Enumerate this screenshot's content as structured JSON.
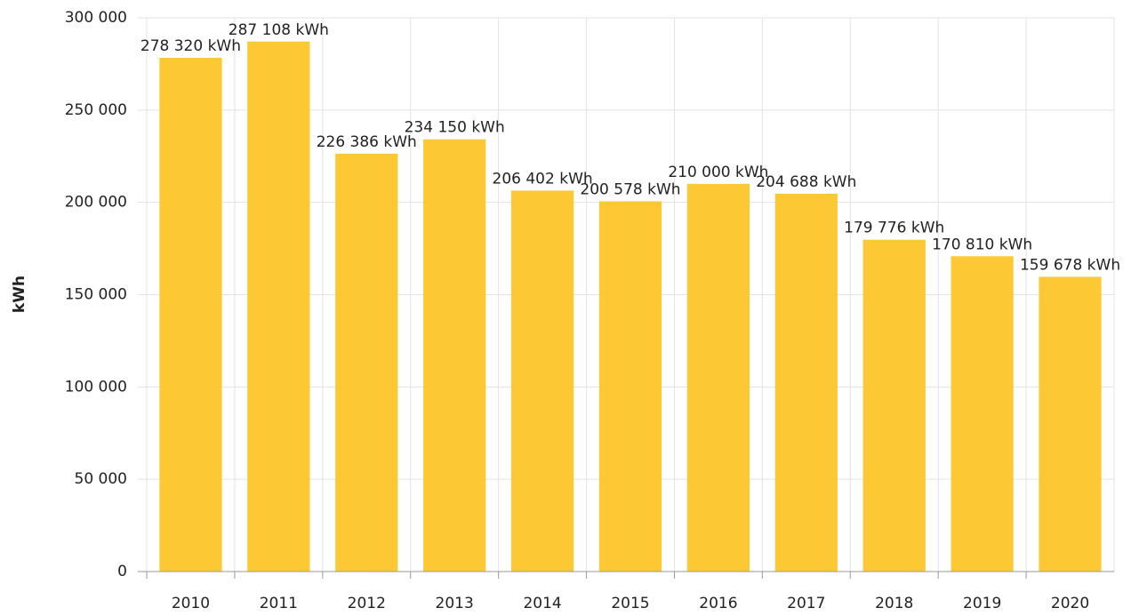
{
  "chart_data": {
    "type": "bar",
    "y_axis_label": "kWh",
    "categories": [
      "2010",
      "2011",
      "2012",
      "2013",
      "2014",
      "2015",
      "2016",
      "2017",
      "2018",
      "2019",
      "2020"
    ],
    "values": [
      278320,
      287108,
      226386,
      234150,
      206402,
      200578,
      210000,
      204688,
      179776,
      170810,
      159678
    ],
    "value_labels": [
      "278 320 kWh",
      "287 108 kWh",
      "226 386 kWh",
      "234 150 kWh",
      "206 402 kWh",
      "200 578 kWh",
      "210 000 kWh",
      "204 688 kWh",
      "179 776 kWh",
      "170 810 kWh",
      "159 678 kWh"
    ],
    "color": "#fcc934",
    "ylim": [
      0,
      300000
    ],
    "yticks": [
      0,
      {
        "value": 50000,
        "label": "50 000"
      },
      {
        "value": 100000,
        "label": "100 000"
      },
      {
        "value": 150000,
        "label": "150 000"
      },
      {
        "value": 200000,
        "label": "200 000"
      },
      {
        "value": 250000,
        "label": "250 000"
      },
      {
        "value": 300000,
        "label": "300 000"
      }
    ],
    "grid": true
  }
}
